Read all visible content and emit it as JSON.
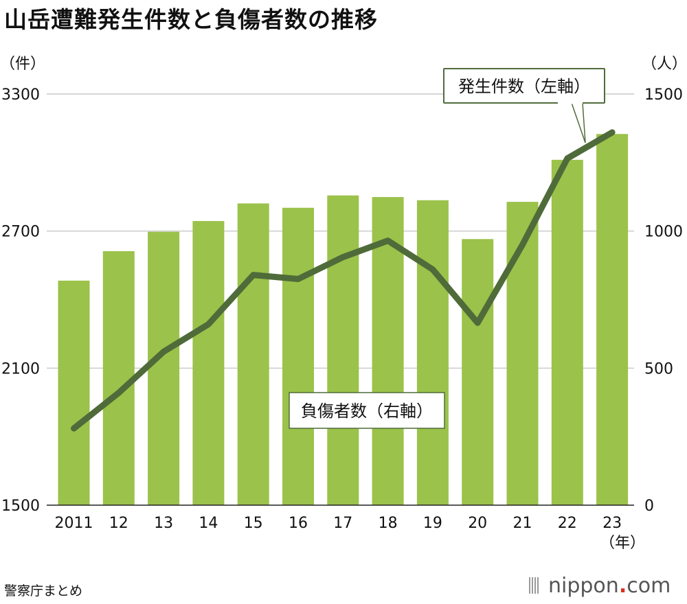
{
  "title": "山岳遭難発生件数と負傷者数の推移",
  "source": "警察庁まとめ",
  "logo": {
    "pre": "nippon",
    "dot": ".",
    "post": "com"
  },
  "chart_data": {
    "type": "bar+line",
    "categories": [
      "2011",
      "12",
      "13",
      "14",
      "15",
      "16",
      "17",
      "18",
      "19",
      "20",
      "21",
      "22",
      "23"
    ],
    "xunit": "（年）",
    "left_axis": {
      "unit": "（件）",
      "ylim": [
        1500,
        3300
      ],
      "ticks": [
        1500,
        2100,
        2700,
        3300
      ]
    },
    "right_axis": {
      "unit": "（人）",
      "ylim": [
        0,
        1500
      ],
      "ticks": [
        0,
        500,
        1000,
        1500
      ]
    },
    "series": [
      {
        "name": "発生件数（左軸）",
        "type": "bar",
        "axis": "left",
        "values": [
          2483,
          2612,
          2697,
          2744,
          2821,
          2802,
          2856,
          2849,
          2835,
          2665,
          2828,
          3012,
          3125
        ],
        "color": "#9bc24a"
      },
      {
        "name": "負傷者数（右軸）",
        "type": "line",
        "axis": "right",
        "values": [
          280,
          410,
          560,
          660,
          840,
          825,
          905,
          965,
          860,
          665,
          950,
          1265,
          1360
        ],
        "color": "#4f6b3a"
      }
    ],
    "grid": true
  }
}
